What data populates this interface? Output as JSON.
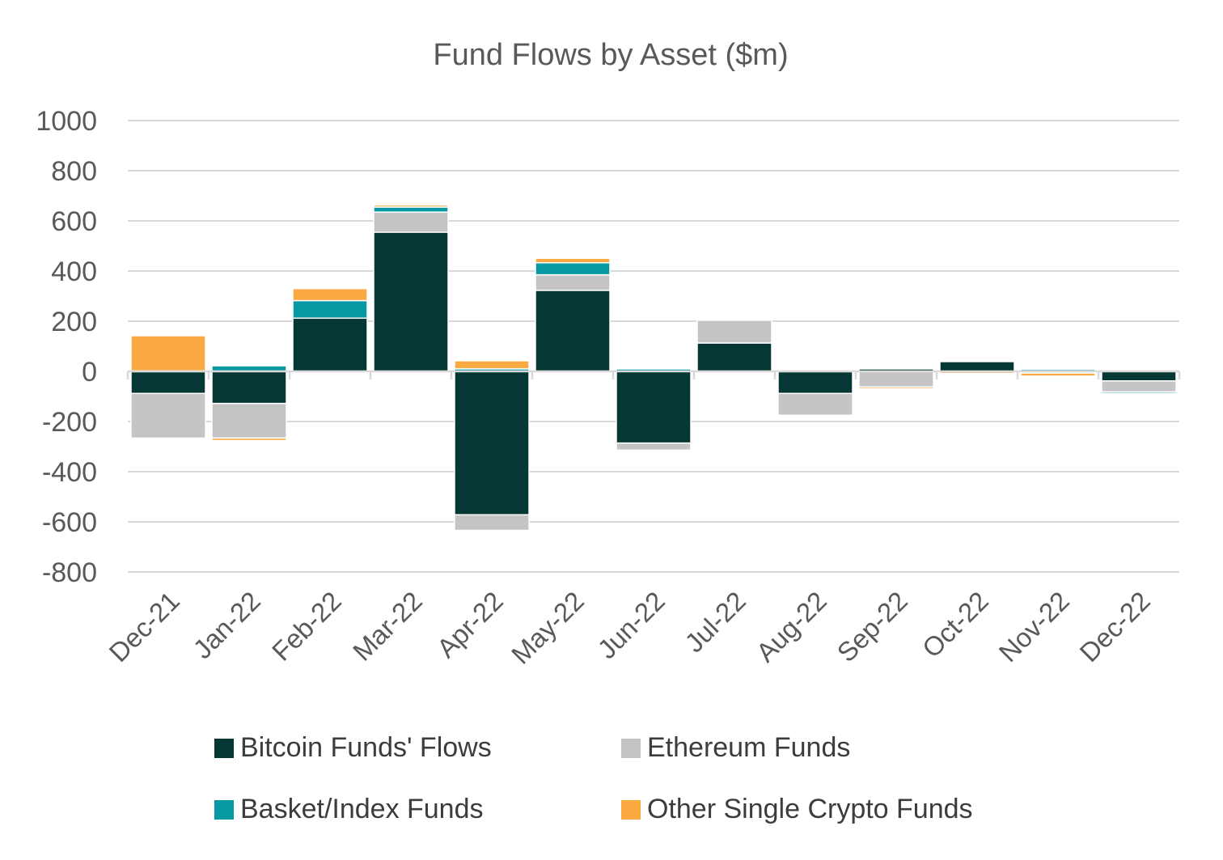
{
  "chart_data": {
    "type": "bar",
    "stacked": true,
    "title": "Fund Flows by Asset ($m)",
    "xlabel": "",
    "ylabel": "",
    "ylim": [
      -800,
      1000
    ],
    "yticks": [
      1000,
      800,
      600,
      400,
      200,
      0,
      -200,
      -400,
      -600,
      -800
    ],
    "grid": true,
    "legend_position": "bottom",
    "categories": [
      "Dec-21",
      "Jan-22",
      "Feb-22",
      "Mar-22",
      "Apr-22",
      "May-22",
      "Jun-22",
      "Jul-22",
      "Aug-22",
      "Sep-22",
      "Oct-22",
      "Nov-22",
      "Dec-22"
    ],
    "series": [
      {
        "name": "Bitcoin Funds' Flows",
        "color": "#053735",
        "values": [
          -88,
          -128,
          212,
          555,
          -572,
          323,
          -286,
          113,
          -88,
          10,
          40,
          -3,
          -38
        ]
      },
      {
        "name": "Ethereum Funds",
        "color": "#c4c4c4",
        "values": [
          -178,
          -138,
          0,
          80,
          -62,
          62,
          -28,
          92,
          -87,
          -62,
          0,
          -4,
          -44
        ]
      },
      {
        "name": "Basket/Index Funds",
        "color": "#0699a4",
        "values": [
          2,
          22,
          70,
          20,
          10,
          48,
          10,
          2,
          2,
          4,
          2,
          8,
          -6
        ]
      },
      {
        "name": "Other Single Crypto Funds",
        "color": "#fbaa41",
        "values": [
          140,
          -10,
          48,
          8,
          32,
          18,
          3,
          3,
          5,
          -7,
          -8,
          -12,
          0
        ]
      }
    ]
  }
}
